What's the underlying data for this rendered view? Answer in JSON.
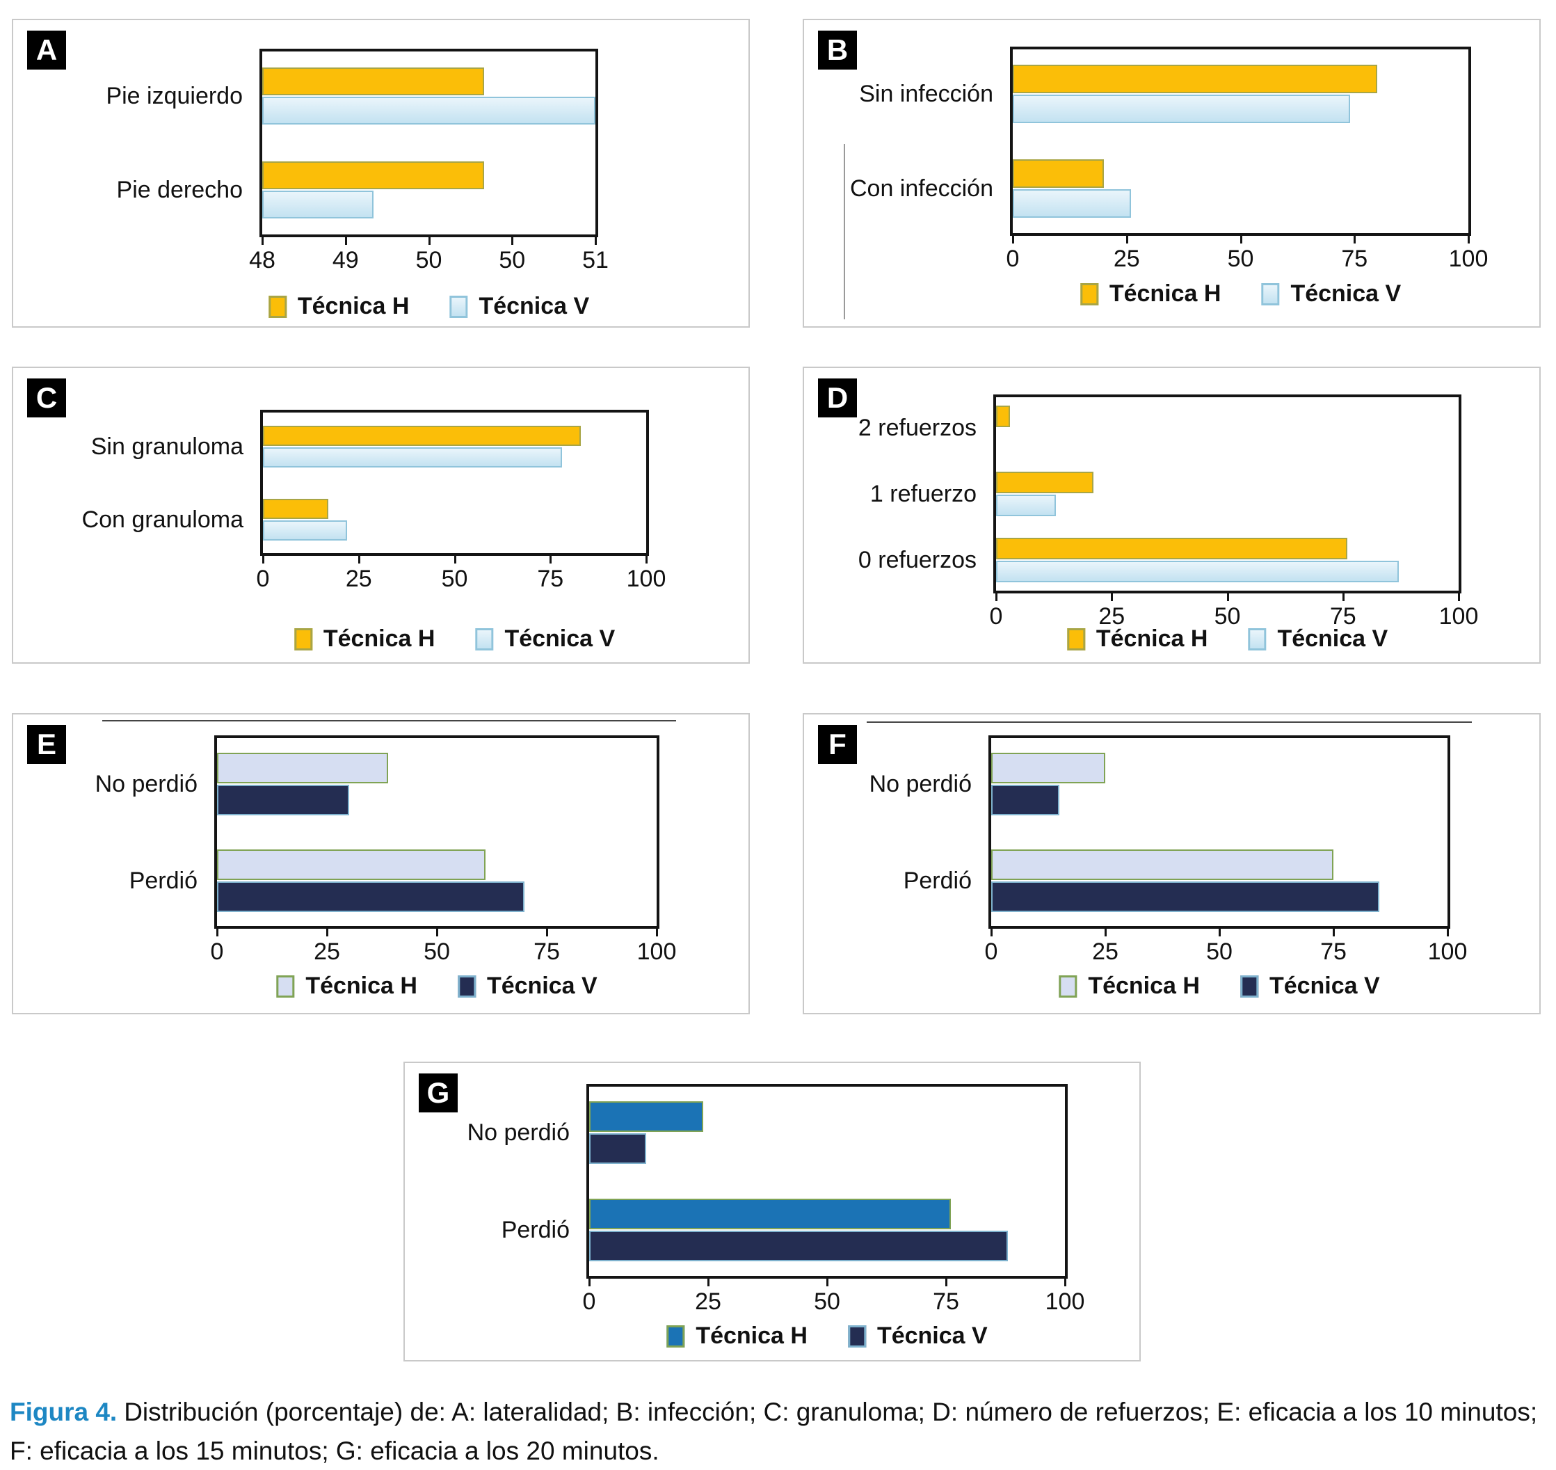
{
  "figure": {
    "caption_label": "Figura 4.",
    "caption_text": "Distribución (porcentaje) de: A: lateralidad; B: infección; C: granuloma; D: número de refuerzos; E: eficacia a los 10 minutos; F: eficacia a los 15 minutos; G: eficacia a los 20 minutos."
  },
  "colors": {
    "caption_accent": "#1D87C3",
    "panel_border": "#C9C9C9",
    "plot_border": "#141414",
    "yellow_fill": "#FBBE08",
    "yellow_border": "#A8A546",
    "lightblue_fill_top": "#EAF5FB",
    "lightblue_fill_bottom": "#C3E2F1",
    "lightblue_border": "#90C4DB",
    "lavender_fill": "#D6DEF2",
    "lavender_border": "#80A355",
    "navy_fill": "#242D52",
    "navy_border": "#7FB2CE",
    "blue_fill": "#1B73B5",
    "blue_border": "#80A355"
  },
  "chart_data": [
    {
      "id": "A",
      "panel_label": "A",
      "type": "bar",
      "orientation": "horizontal",
      "title": "Lateralidad",
      "categories": [
        "Pie izquierdo",
        "Pie derecho"
      ],
      "series": [
        {
          "name": "Técnica H",
          "color_key": "yellow",
          "values": [
            50,
            50
          ]
        },
        {
          "name": "Técnica V",
          "color_key": "lightblue",
          "values": [
            51,
            49
          ]
        }
      ],
      "xlim": [
        48,
        51
      ],
      "x_ticks": [
        "48",
        "49",
        "50",
        "50",
        "51"
      ],
      "grid": false,
      "legend_position": "bottom"
    },
    {
      "id": "B",
      "panel_label": "B",
      "type": "bar",
      "orientation": "horizontal",
      "title": "Infección",
      "categories": [
        "Sin infección",
        "Con infección"
      ],
      "series": [
        {
          "name": "Técnica H",
          "color_key": "yellow",
          "values": [
            80,
            20
          ]
        },
        {
          "name": "Técnica V",
          "color_key": "lightblue",
          "values": [
            74,
            26
          ]
        }
      ],
      "xlim": [
        0,
        100
      ],
      "x_ticks": [
        "0",
        "25",
        "50",
        "75",
        "100"
      ],
      "grid": false,
      "legend_position": "bottom"
    },
    {
      "id": "C",
      "panel_label": "C",
      "type": "bar",
      "orientation": "horizontal",
      "title": "Granuloma",
      "categories": [
        "Sin granuloma",
        "Con granuloma"
      ],
      "series": [
        {
          "name": "Técnica H",
          "color_key": "yellow",
          "values": [
            83,
            17
          ]
        },
        {
          "name": "Técnica V",
          "color_key": "lightblue",
          "values": [
            78,
            22
          ]
        }
      ],
      "xlim": [
        0,
        100
      ],
      "x_ticks": [
        "0",
        "25",
        "50",
        "75",
        "100"
      ],
      "grid": false,
      "legend_position": "bottom"
    },
    {
      "id": "D",
      "panel_label": "D",
      "type": "bar",
      "orientation": "horizontal",
      "title": "Número de refuerzos",
      "categories": [
        "2 refuerzos",
        "1 refuerzo",
        "0 refuerzos"
      ],
      "series": [
        {
          "name": "Técnica H",
          "color_key": "yellow",
          "values": [
            3,
            21,
            76
          ]
        },
        {
          "name": "Técnica V",
          "color_key": "lightblue",
          "values": [
            0,
            13,
            87
          ]
        }
      ],
      "xlim": [
        0,
        100
      ],
      "x_ticks": [
        "0",
        "25",
        "50",
        "75",
        "100"
      ],
      "grid": false,
      "legend_position": "bottom"
    },
    {
      "id": "E",
      "panel_label": "E",
      "type": "bar",
      "orientation": "horizontal",
      "title": "Eficacia a los 10 minutos",
      "categories": [
        "No perdió",
        "Perdió"
      ],
      "series": [
        {
          "name": "Técnica H",
          "color_key": "lavender",
          "values": [
            39,
            61
          ]
        },
        {
          "name": "Técnica V",
          "color_key": "navy",
          "values": [
            30,
            70
          ]
        }
      ],
      "xlim": [
        0,
        100
      ],
      "x_ticks": [
        "0",
        "25",
        "50",
        "75",
        "100"
      ],
      "grid": false,
      "legend_position": "bottom"
    },
    {
      "id": "F",
      "panel_label": "F",
      "type": "bar",
      "orientation": "horizontal",
      "title": "Eficacia a los 15 minutos",
      "categories": [
        "No perdió",
        "Perdió"
      ],
      "series": [
        {
          "name": "Técnica H",
          "color_key": "lavender",
          "values": [
            25,
            75
          ]
        },
        {
          "name": "Técnica V",
          "color_key": "navy",
          "values": [
            15,
            85
          ]
        }
      ],
      "xlim": [
        0,
        100
      ],
      "x_ticks": [
        "0",
        "25",
        "50",
        "75",
        "100"
      ],
      "grid": false,
      "legend_position": "bottom"
    },
    {
      "id": "G",
      "panel_label": "G",
      "type": "bar",
      "orientation": "horizontal",
      "title": "Eficacia a los 20 minutos",
      "categories": [
        "No perdió",
        "Perdió"
      ],
      "series": [
        {
          "name": "Técnica H",
          "color_key": "blue",
          "values": [
            24,
            76
          ]
        },
        {
          "name": "Técnica V",
          "color_key": "navy",
          "values": [
            12,
            88
          ]
        }
      ],
      "xlim": [
        0,
        100
      ],
      "x_ticks": [
        "0",
        "25",
        "50",
        "75",
        "100"
      ],
      "grid": false,
      "legend_position": "bottom"
    }
  ]
}
